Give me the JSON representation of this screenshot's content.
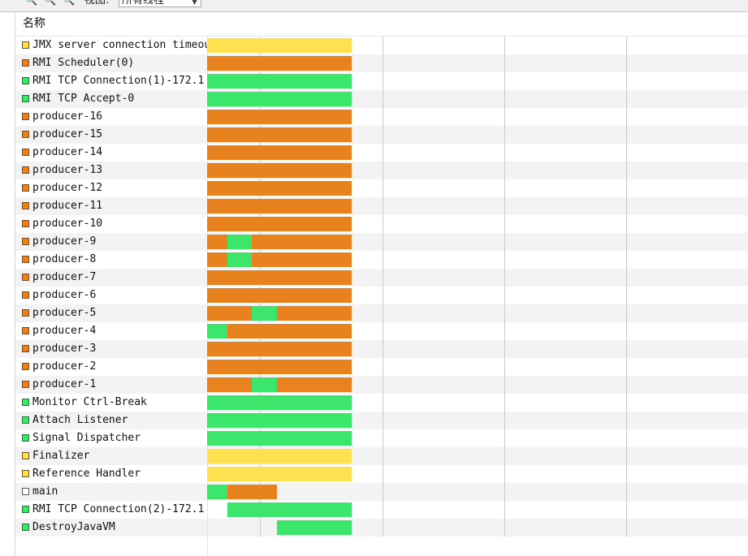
{
  "colors": {
    "running": "#3ce66b",
    "sleeping": "#e8821e",
    "waiting": "#ffe050",
    "other": "#ffffff"
  },
  "toolbar": {
    "icons": [
      "zoom-in-icon",
      "zoom-out-icon",
      "zoom-fit-icon"
    ],
    "view_label": "视图:",
    "view_selected": "所有线程"
  },
  "table": {
    "column_name": "名称"
  },
  "timeline": {
    "start": 0,
    "end": 1000,
    "gridlines": [
      98,
      324,
      549,
      775
    ]
  },
  "threads": [
    {
      "name": "JMX server connection timeout",
      "state": "waiting",
      "segments": [
        {
          "from": 0,
          "to": 267,
          "state": "waiting"
        }
      ]
    },
    {
      "name": "RMI Scheduler(0)",
      "state": "sleeping",
      "segments": [
        {
          "from": 0,
          "to": 267,
          "state": "sleeping"
        }
      ]
    },
    {
      "name": "RMI TCP Connection(1)-172.1",
      "state": "running",
      "segments": [
        {
          "from": 0,
          "to": 267,
          "state": "running"
        }
      ]
    },
    {
      "name": "RMI TCP Accept-0",
      "state": "running",
      "segments": [
        {
          "from": 0,
          "to": 267,
          "state": "running"
        }
      ]
    },
    {
      "name": "producer-16",
      "state": "sleeping",
      "segments": [
        {
          "from": 0,
          "to": 267,
          "state": "sleeping"
        }
      ]
    },
    {
      "name": "producer-15",
      "state": "sleeping",
      "segments": [
        {
          "from": 0,
          "to": 267,
          "state": "sleeping"
        }
      ]
    },
    {
      "name": "producer-14",
      "state": "sleeping",
      "segments": [
        {
          "from": 0,
          "to": 267,
          "state": "sleeping"
        }
      ]
    },
    {
      "name": "producer-13",
      "state": "sleeping",
      "segments": [
        {
          "from": 0,
          "to": 267,
          "state": "sleeping"
        }
      ]
    },
    {
      "name": "producer-12",
      "state": "sleeping",
      "segments": [
        {
          "from": 0,
          "to": 267,
          "state": "sleeping"
        }
      ]
    },
    {
      "name": "producer-11",
      "state": "sleeping",
      "segments": [
        {
          "from": 0,
          "to": 267,
          "state": "sleeping"
        }
      ]
    },
    {
      "name": "producer-10",
      "state": "sleeping",
      "segments": [
        {
          "from": 0,
          "to": 267,
          "state": "sleeping"
        }
      ]
    },
    {
      "name": "producer-9",
      "state": "sleeping",
      "segments": [
        {
          "from": 0,
          "to": 38,
          "state": "sleeping"
        },
        {
          "from": 38,
          "to": 83,
          "state": "running"
        },
        {
          "from": 83,
          "to": 267,
          "state": "sleeping"
        }
      ]
    },
    {
      "name": "producer-8",
      "state": "sleeping",
      "segments": [
        {
          "from": 0,
          "to": 38,
          "state": "sleeping"
        },
        {
          "from": 38,
          "to": 83,
          "state": "running"
        },
        {
          "from": 83,
          "to": 267,
          "state": "sleeping"
        }
      ]
    },
    {
      "name": "producer-7",
      "state": "sleeping",
      "segments": [
        {
          "from": 0,
          "to": 267,
          "state": "sleeping"
        }
      ]
    },
    {
      "name": "producer-6",
      "state": "sleeping",
      "segments": [
        {
          "from": 0,
          "to": 267,
          "state": "sleeping"
        }
      ]
    },
    {
      "name": "producer-5",
      "state": "sleeping",
      "segments": [
        {
          "from": 0,
          "to": 83,
          "state": "sleeping"
        },
        {
          "from": 83,
          "to": 129,
          "state": "running"
        },
        {
          "from": 129,
          "to": 267,
          "state": "sleeping"
        }
      ]
    },
    {
      "name": "producer-4",
      "state": "sleeping",
      "segments": [
        {
          "from": 0,
          "to": 38,
          "state": "running"
        },
        {
          "from": 38,
          "to": 267,
          "state": "sleeping"
        }
      ]
    },
    {
      "name": "producer-3",
      "state": "sleeping",
      "segments": [
        {
          "from": 0,
          "to": 267,
          "state": "sleeping"
        }
      ]
    },
    {
      "name": "producer-2",
      "state": "sleeping",
      "segments": [
        {
          "from": 0,
          "to": 267,
          "state": "sleeping"
        }
      ]
    },
    {
      "name": "producer-1",
      "state": "sleeping",
      "segments": [
        {
          "from": 0,
          "to": 83,
          "state": "sleeping"
        },
        {
          "from": 83,
          "to": 129,
          "state": "running"
        },
        {
          "from": 129,
          "to": 267,
          "state": "sleeping"
        }
      ]
    },
    {
      "name": "Monitor Ctrl-Break",
      "state": "running",
      "segments": [
        {
          "from": 0,
          "to": 267,
          "state": "running"
        }
      ]
    },
    {
      "name": "Attach Listener",
      "state": "running",
      "segments": [
        {
          "from": 0,
          "to": 267,
          "state": "running"
        }
      ]
    },
    {
      "name": "Signal Dispatcher",
      "state": "running",
      "segments": [
        {
          "from": 0,
          "to": 267,
          "state": "running"
        }
      ]
    },
    {
      "name": "Finalizer",
      "state": "waiting",
      "segments": [
        {
          "from": 0,
          "to": 267,
          "state": "waiting"
        }
      ]
    },
    {
      "name": "Reference Handler",
      "state": "waiting",
      "segments": [
        {
          "from": 0,
          "to": 267,
          "state": "waiting"
        }
      ]
    },
    {
      "name": "main",
      "state": "other",
      "segments": [
        {
          "from": 0,
          "to": 38,
          "state": "running"
        },
        {
          "from": 38,
          "to": 129,
          "state": "sleeping"
        }
      ]
    },
    {
      "name": "RMI TCP Connection(2)-172.1",
      "state": "running",
      "segments": [
        {
          "from": 38,
          "to": 267,
          "state": "running"
        }
      ]
    },
    {
      "name": "DestroyJavaVM",
      "state": "running",
      "segments": [
        {
          "from": 129,
          "to": 267,
          "state": "running"
        }
      ]
    }
  ]
}
